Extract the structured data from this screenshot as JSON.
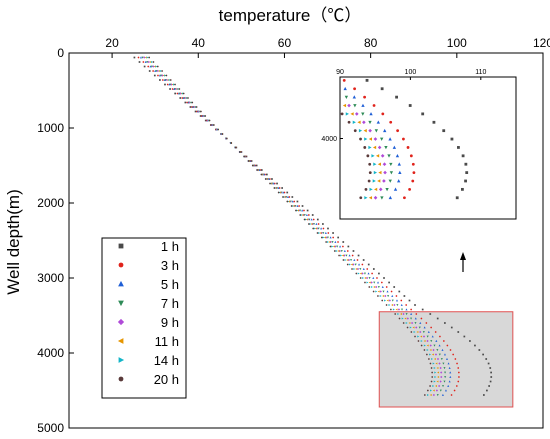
{
  "chart_data": {
    "type": "scatter",
    "title": "",
    "xlabel": "temperature（℃）",
    "ylabel": "Well depth(m)",
    "xlim": [
      10,
      120
    ],
    "ylim": [
      5000,
      0
    ],
    "x_axis_position": "top",
    "y_inverted": true,
    "xticks": [
      "20",
      "40",
      "60",
      "80",
      "100",
      "120"
    ],
    "yticks": [
      "0",
      "1000",
      "2000",
      "3000",
      "4000",
      "5000"
    ],
    "grid": false,
    "legend_position": "left",
    "series": [
      {
        "name": "1 h",
        "marker": "square",
        "color": "#4a4a4a",
        "surface_temp": 24.0,
        "knee_depth": 3350,
        "knee_temp": 90.0,
        "max_temp": 108.0,
        "bottom_temp": 106.0
      },
      {
        "name": "3 h",
        "marker": "circle",
        "color": "#e0231b",
        "surface_temp": 25.0,
        "knee_depth": 3400,
        "knee_temp": 89.0,
        "max_temp": 100.5,
        "bottom_temp": 98.5
      },
      {
        "name": "5 h",
        "marker": "triangle-up",
        "color": "#1f5fd6",
        "surface_temp": 25.6,
        "knee_depth": 3430,
        "knee_temp": 88.5,
        "max_temp": 98.5,
        "bottom_temp": 96.5
      },
      {
        "name": "7 h",
        "marker": "triangle-down",
        "color": "#2e8b57",
        "surface_temp": 26.0,
        "knee_depth": 3460,
        "knee_temp": 88.0,
        "max_temp": 97.3,
        "bottom_temp": 95.3
      },
      {
        "name": "9 h",
        "marker": "diamond",
        "color": "#b04ad8",
        "surface_temp": 26.4,
        "knee_depth": 3490,
        "knee_temp": 87.8,
        "max_temp": 96.4,
        "bottom_temp": 94.4
      },
      {
        "name": "11 h",
        "marker": "triangle-left",
        "color": "#e69500",
        "surface_temp": 26.8,
        "knee_depth": 3510,
        "knee_temp": 87.6,
        "max_temp": 95.7,
        "bottom_temp": 93.7
      },
      {
        "name": "14 h",
        "marker": "triangle-right",
        "color": "#13b5c8",
        "surface_temp": 27.2,
        "knee_depth": 3540,
        "knee_temp": 87.4,
        "max_temp": 95.0,
        "bottom_temp": 93.0
      },
      {
        "name": "20 h",
        "marker": "circle",
        "color": "#5a3a3a",
        "surface_temp": 27.6,
        "knee_depth": 3570,
        "knee_temp": 87.2,
        "max_temp": 94.3,
        "bottom_temp": 92.3
      }
    ],
    "profile_range": {
      "depth_start": 60,
      "depth_end": 4580,
      "max_temp_depth": 4300
    },
    "highlight_box": {
      "x": [
        82,
        113
      ],
      "y": [
        3450,
        4720
      ],
      "color": "#d8d8d8",
      "stroke": "#e05050"
    },
    "inset": {
      "xlim": [
        90,
        115
      ],
      "xticks": [
        "90",
        "100",
        "110"
      ],
      "yticks": [
        "4000"
      ],
      "y_tick_value": 4000,
      "ylim": [
        3450,
        4720
      ]
    },
    "annotation": "arrow pointing up from zoom box to inset"
  }
}
